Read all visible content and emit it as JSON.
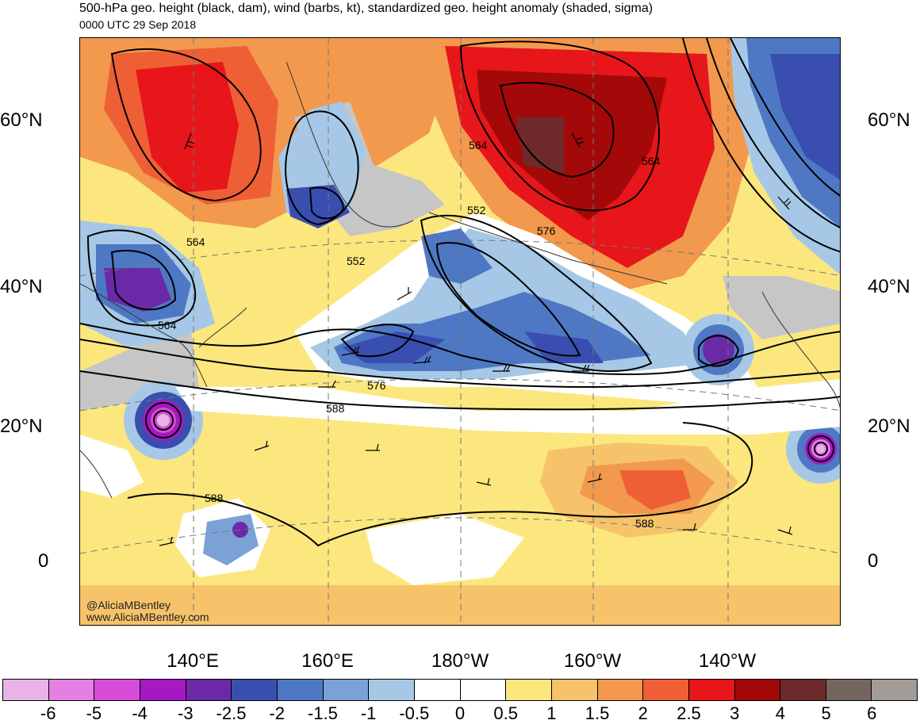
{
  "header": {
    "title": "500-hPa geo. height (black, dam), wind (barbs, kt), standardized geo. height anomaly (shaded, sigma)",
    "subtitle": "0000 UTC 29 Sep 2018"
  },
  "map": {
    "lat_labels": [
      "60°N",
      "40°N",
      "20°N",
      "0"
    ],
    "lon_labels": [
      "140°E",
      "160°E",
      "180°W",
      "160°W",
      "140°W"
    ],
    "contour_labels": [
      "564",
      "564",
      "564",
      "552",
      "552",
      "576",
      "576",
      "564",
      "588",
      "588",
      "588"
    ],
    "credit_line1": "@AliciaMBentley",
    "credit_line2": "www.AliciaMBentley.com"
  },
  "colorbar": {
    "labels": [
      "-6",
      "-5",
      "-4",
      "-3",
      "-2.5",
      "-2",
      "-1.5",
      "-1",
      "-0.5",
      "0",
      "0.5",
      "1",
      "1.5",
      "2",
      "2.5",
      "3",
      "4",
      "5",
      "6"
    ],
    "colors": [
      "#e8b3e6",
      "#e57fe3",
      "#d64cd8",
      "#a519c2",
      "#6a2aa7",
      "#3a4eb0",
      "#4f78c4",
      "#7ba2d7",
      "#a6c8e6",
      "#ffffff",
      "#ffffff",
      "#fce77e",
      "#f6c36a",
      "#f2994e",
      "#ee5f35",
      "#e6161a",
      "#a30909",
      "#6e2a2a",
      "#74665f",
      "#a39b98"
    ]
  }
}
